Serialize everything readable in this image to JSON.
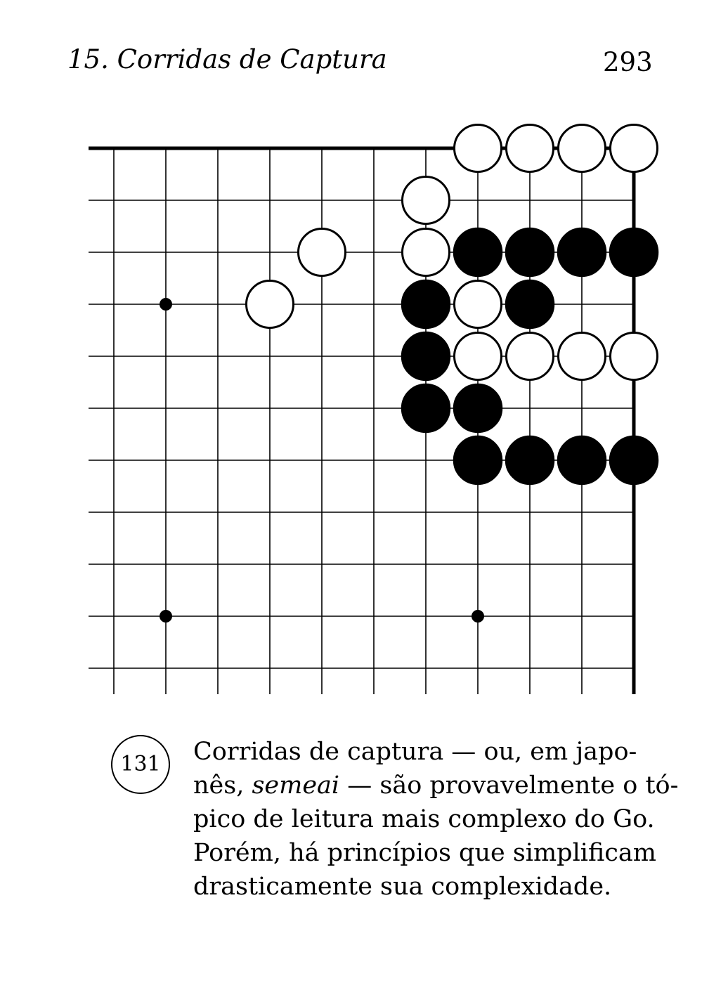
{
  "header": {
    "running_title": "15. Corridas de Captura",
    "page_number": "293"
  },
  "board": {
    "columns": 11,
    "rows": 11,
    "hoshi": [
      [
        1,
        3
      ],
      [
        1,
        9
      ],
      [
        7,
        9
      ]
    ],
    "white_stones": [
      [
        7,
        0
      ],
      [
        8,
        0
      ],
      [
        9,
        0
      ],
      [
        10,
        0
      ],
      [
        6,
        1
      ],
      [
        4,
        2
      ],
      [
        6,
        2
      ],
      [
        3,
        3
      ],
      [
        7,
        3
      ],
      [
        7,
        4
      ],
      [
        8,
        4
      ],
      [
        9,
        4
      ],
      [
        10,
        4
      ]
    ],
    "black_stones": [
      [
        7,
        2
      ],
      [
        8,
        2
      ],
      [
        9,
        2
      ],
      [
        10,
        2
      ],
      [
        6,
        3
      ],
      [
        8,
        3
      ],
      [
        6,
        4
      ],
      [
        6,
        5
      ],
      [
        7,
        5
      ],
      [
        7,
        6
      ],
      [
        8,
        6
      ],
      [
        9,
        6
      ],
      [
        10,
        6
      ]
    ]
  },
  "diagram": {
    "number": "131"
  },
  "caption": {
    "line1": "Corridas de captura — ou, em japo-",
    "line2_pre": "nês, ",
    "line2_em": "semeai",
    "line2_post": " — são provavelmente o tó-",
    "line3": "pico de leitura mais complexo do Go.",
    "line4": "Porém, há princípios que simplificam",
    "line5": "drasticamente sua complexidade."
  }
}
